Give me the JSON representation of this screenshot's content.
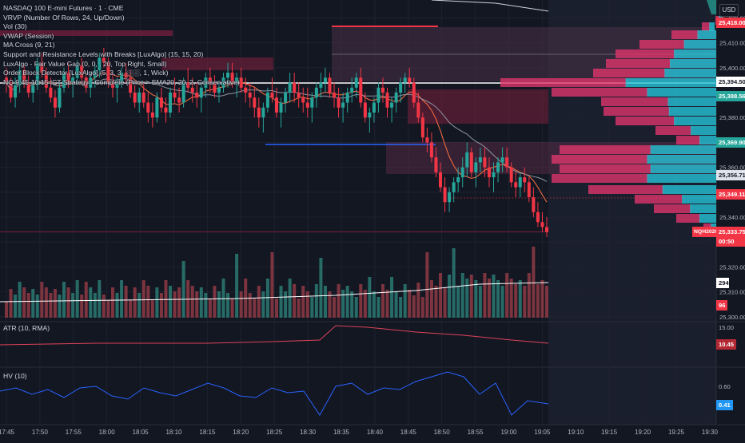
{
  "legend": {
    "symbol": "NASDAQ 100 E-mini Futures · 1 · CME",
    "indicators": [
      "VRVP (Number Of Rows, 24, Up/Down)",
      "Vol (30)",
      "VWAP (Session)",
      "MA Cross (9, 21)",
      "Support and Resistance Levels with Breaks [LuxAlgo] (15, 15, 20)",
      "LuxAlgo - Fair Value Gap (0, 0, , 20, Top Right, Small)",
      "Order Block Detector [LuxAlgo] (5, 3, 3, ░░░, 1, Wick)",
      "NQ 9:45-10:15 ICT Strategy - Complete (Price > EMA20, 20, 2, Conservative)"
    ]
  },
  "currency_button": "USD",
  "price_axis": {
    "ticks": [
      "25,420.00",
      "25,410.00",
      "25,400.00",
      "25,390.00",
      "25,380.00",
      "25,370.00",
      "25,360.00",
      "25,350.00",
      "25,340.00",
      "25,330.00",
      "25,320.00",
      "25,310.00",
      "25,300.00"
    ]
  },
  "price_tags": [
    {
      "label": "25,418.00",
      "value": 25418,
      "bg": "#f23645",
      "fg": "#ffffff"
    },
    {
      "label": "25,394.50",
      "value": 25394.5,
      "bg": "#ffffff",
      "fg": "#131722"
    },
    {
      "label": "25,388.56",
      "value": 25388.56,
      "bg": "#26a69a",
      "fg": "#ffffff"
    },
    {
      "label": "25,369.90",
      "value": 25369.9,
      "bg": "#26a69a",
      "fg": "#ffffff"
    },
    {
      "label": "25,356.71",
      "value": 25356.71,
      "bg": "#e0e3eb",
      "fg": "#131722"
    },
    {
      "label": "25,349.11",
      "value": 25349.11,
      "bg": "#f23645",
      "fg": "#ffffff"
    },
    {
      "label": "25,333.75",
      "value": 25333.75,
      "bg": "#f23645",
      "fg": "#ffffff"
    }
  ],
  "last_price": {
    "symbol": "NQH2026",
    "price": "25,333.75",
    "countdown": "00:50"
  },
  "volume_tags": [
    {
      "label": "294",
      "bg": "#ffffff",
      "fg": "#131722"
    },
    {
      "label": "96",
      "bg": "#f23645",
      "fg": "#ffffff"
    }
  ],
  "time_axis": [
    "17:45",
    "17:50",
    "17:55",
    "18:00",
    "18:05",
    "18:10",
    "18:15",
    "18:20",
    "18:25",
    "18:30",
    "18:35",
    "18:40",
    "18:45",
    "18:50",
    "18:55",
    "19:00",
    "19:05",
    "19:10",
    "19:15",
    "19:20",
    "19:25",
    "19:30"
  ],
  "atr": {
    "label": "ATR (10, RMA)",
    "axis": "15.00",
    "value": "10.45"
  },
  "hv": {
    "label": "HV (10)",
    "axis": "0.60",
    "value": "0.41"
  },
  "colors": {
    "up": "#26a69a",
    "down": "#f23645",
    "background": "#131722",
    "vwap": "#ffffff",
    "atr": "#e0425a",
    "hv": "#2962ff"
  },
  "chart_data": {
    "type": "candlestick",
    "interval": "1 minute",
    "y_range": [
      25298,
      25424
    ],
    "start_time": "17:45",
    "ohlc_note": "approximate, read from axis",
    "candles": []
  }
}
